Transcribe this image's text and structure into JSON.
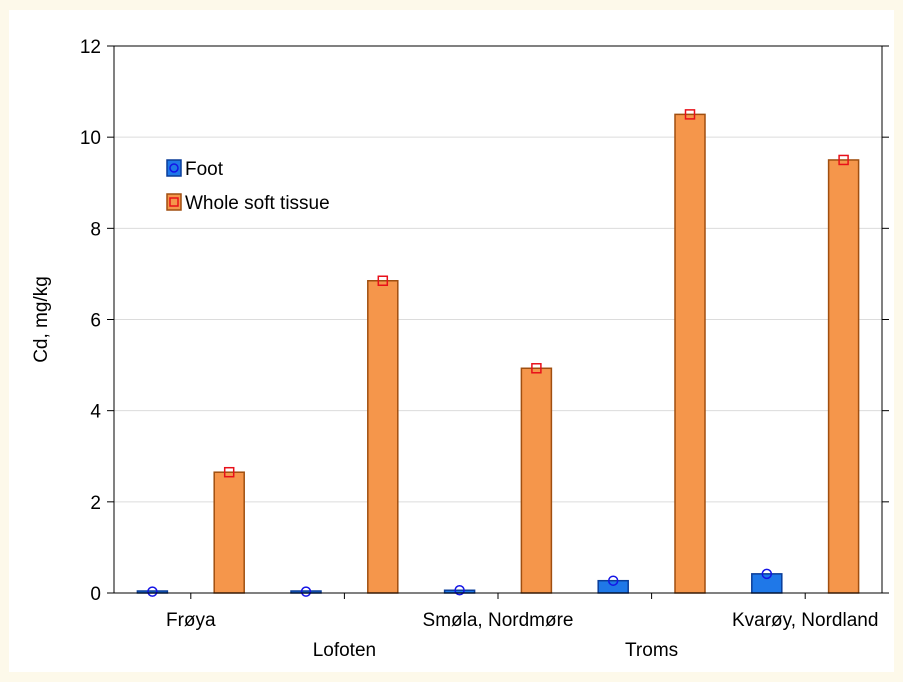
{
  "chart_data": {
    "type": "bar",
    "categories": [
      "Frøya",
      "Lofoten",
      "Smøla, Nordmøre",
      "Troms",
      "Kvarøy, Nordland"
    ],
    "series": [
      {
        "name": "Foot",
        "values": [
          0.03,
          0.03,
          0.06,
          0.27,
          0.42
        ],
        "color": "#1f78e8",
        "marker": "circle",
        "marker_color": "#1414e6"
      },
      {
        "name": "Whole soft tissue",
        "values": [
          2.65,
          6.85,
          4.93,
          10.5,
          9.5
        ],
        "color": "#f5964b",
        "marker": "square",
        "marker_color": "#e8101a"
      }
    ],
    "title": "",
    "xlabel": "",
    "ylabel": "Cd, mg/kg",
    "ylim": [
      0,
      12
    ],
    "yticks": [
      0,
      2,
      4,
      6,
      8,
      10,
      12
    ],
    "grid": true,
    "legend_position": "top-left",
    "tick_label_layout": "staggered"
  }
}
